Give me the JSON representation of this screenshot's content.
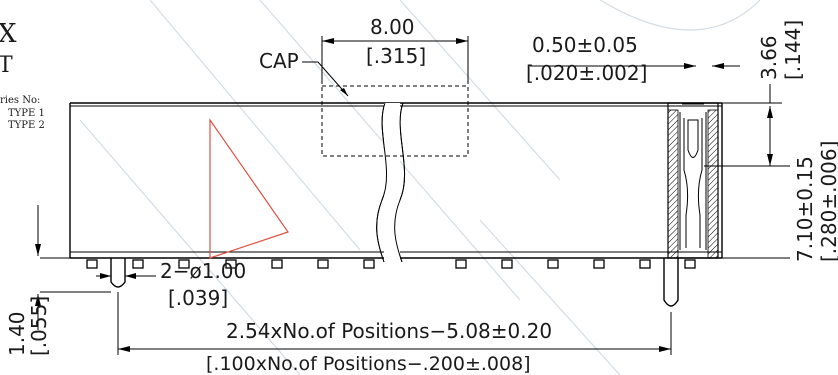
{
  "header": {
    "corner_title": "X",
    "corner_sub": "T",
    "series_label": "ries No:",
    "type1": "TYPE 1",
    "type2": "TYPE 2"
  },
  "labels": {
    "cap": "CAP"
  },
  "dimensions": {
    "cap_width_mm": "8.00",
    "cap_width_in": "[.315]",
    "pitch_mm": "0.50±0.05",
    "pitch_in": "[.020±.002]",
    "top_mm": "3.66",
    "top_in": "[.144]",
    "height_mm": "7.10±0.15",
    "height_in": "[.280±.006]",
    "hole_mm": "2−ø1.00",
    "hole_in": "[.039]",
    "post_mm": "1.40",
    "post_in": "[.055]",
    "length_mm": "2.54xNo.of Positions−5.08±0.20",
    "length_in": "[.100xNo.of Positions−.200±.008]"
  },
  "colors": {
    "line": "#000000",
    "accent": "#e05040",
    "watermark": "#b8c4d0"
  }
}
